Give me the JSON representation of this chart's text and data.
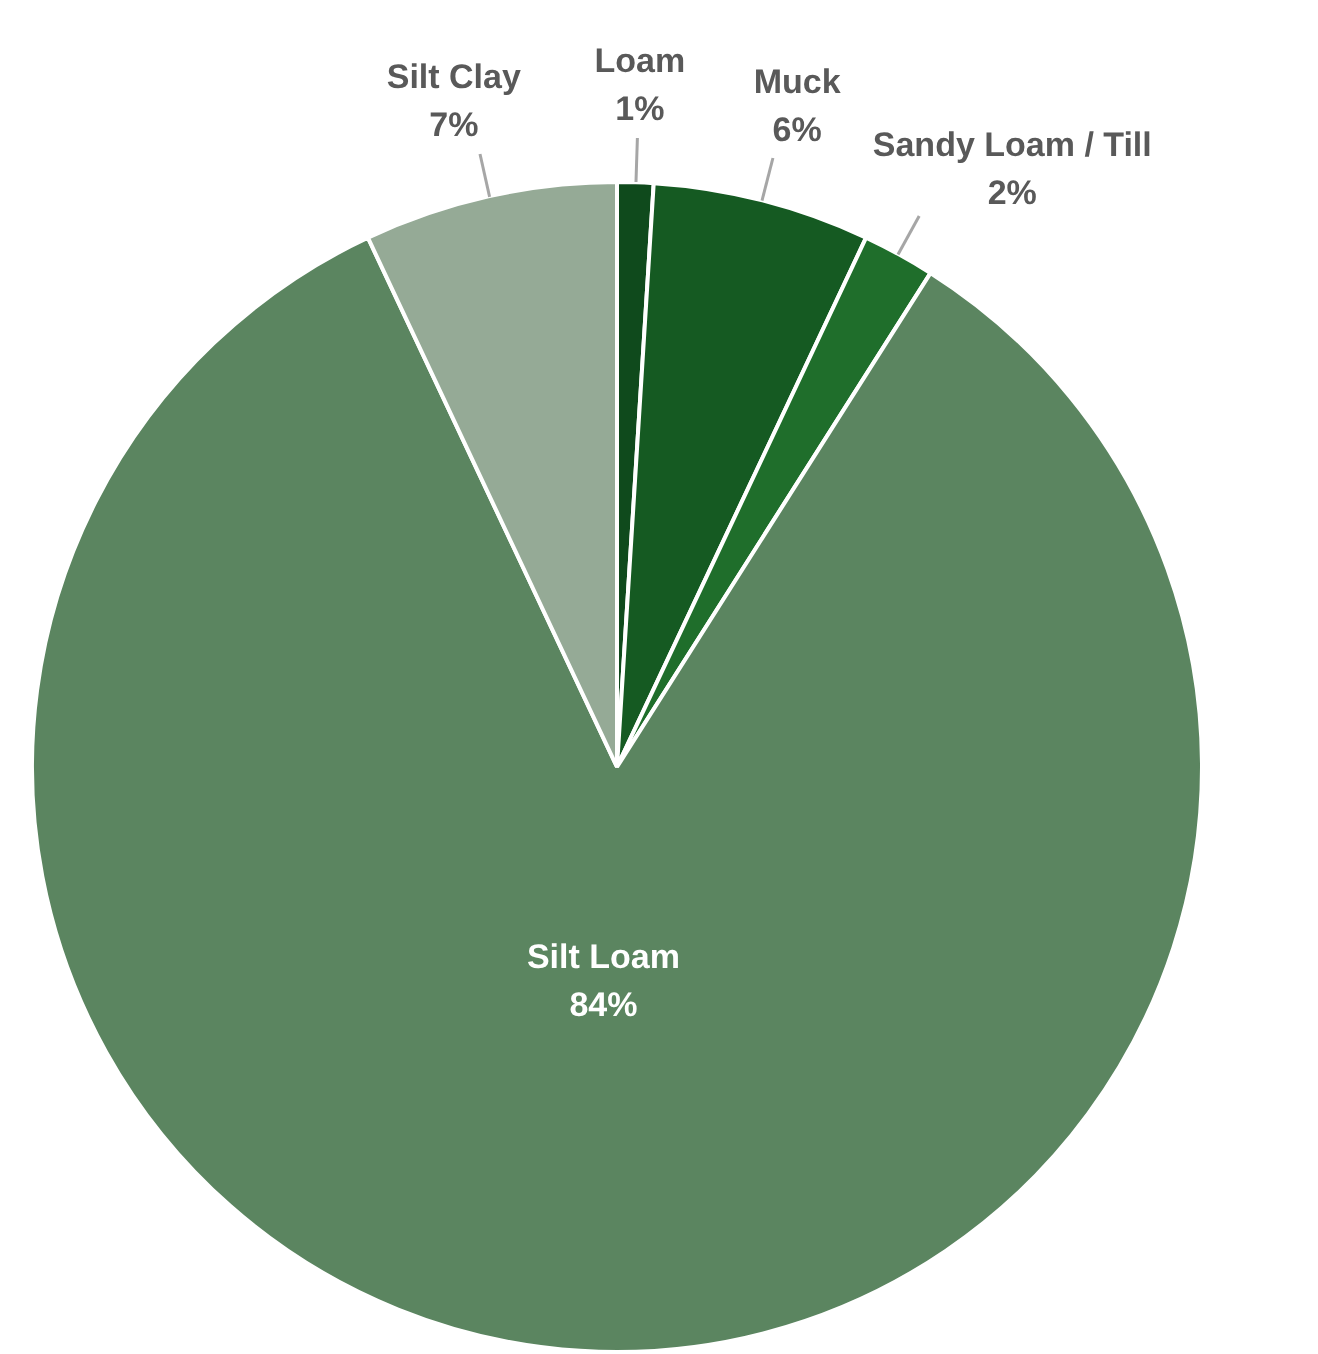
{
  "chart_data": {
    "type": "pie",
    "categories": [
      "Loam",
      "Muck",
      "Sandy Loam / Till",
      "Silt Loam",
      "Silt Clay"
    ],
    "values": [
      1,
      6,
      2,
      84,
      7
    ],
    "value_labels": [
      "1%",
      "6%",
      "2%",
      "84%",
      "7%"
    ],
    "colors": [
      "#0f4a1c",
      "#155a22",
      "#1f6e2b",
      "#5b8560",
      "#95aa96"
    ],
    "legend": false
  }
}
